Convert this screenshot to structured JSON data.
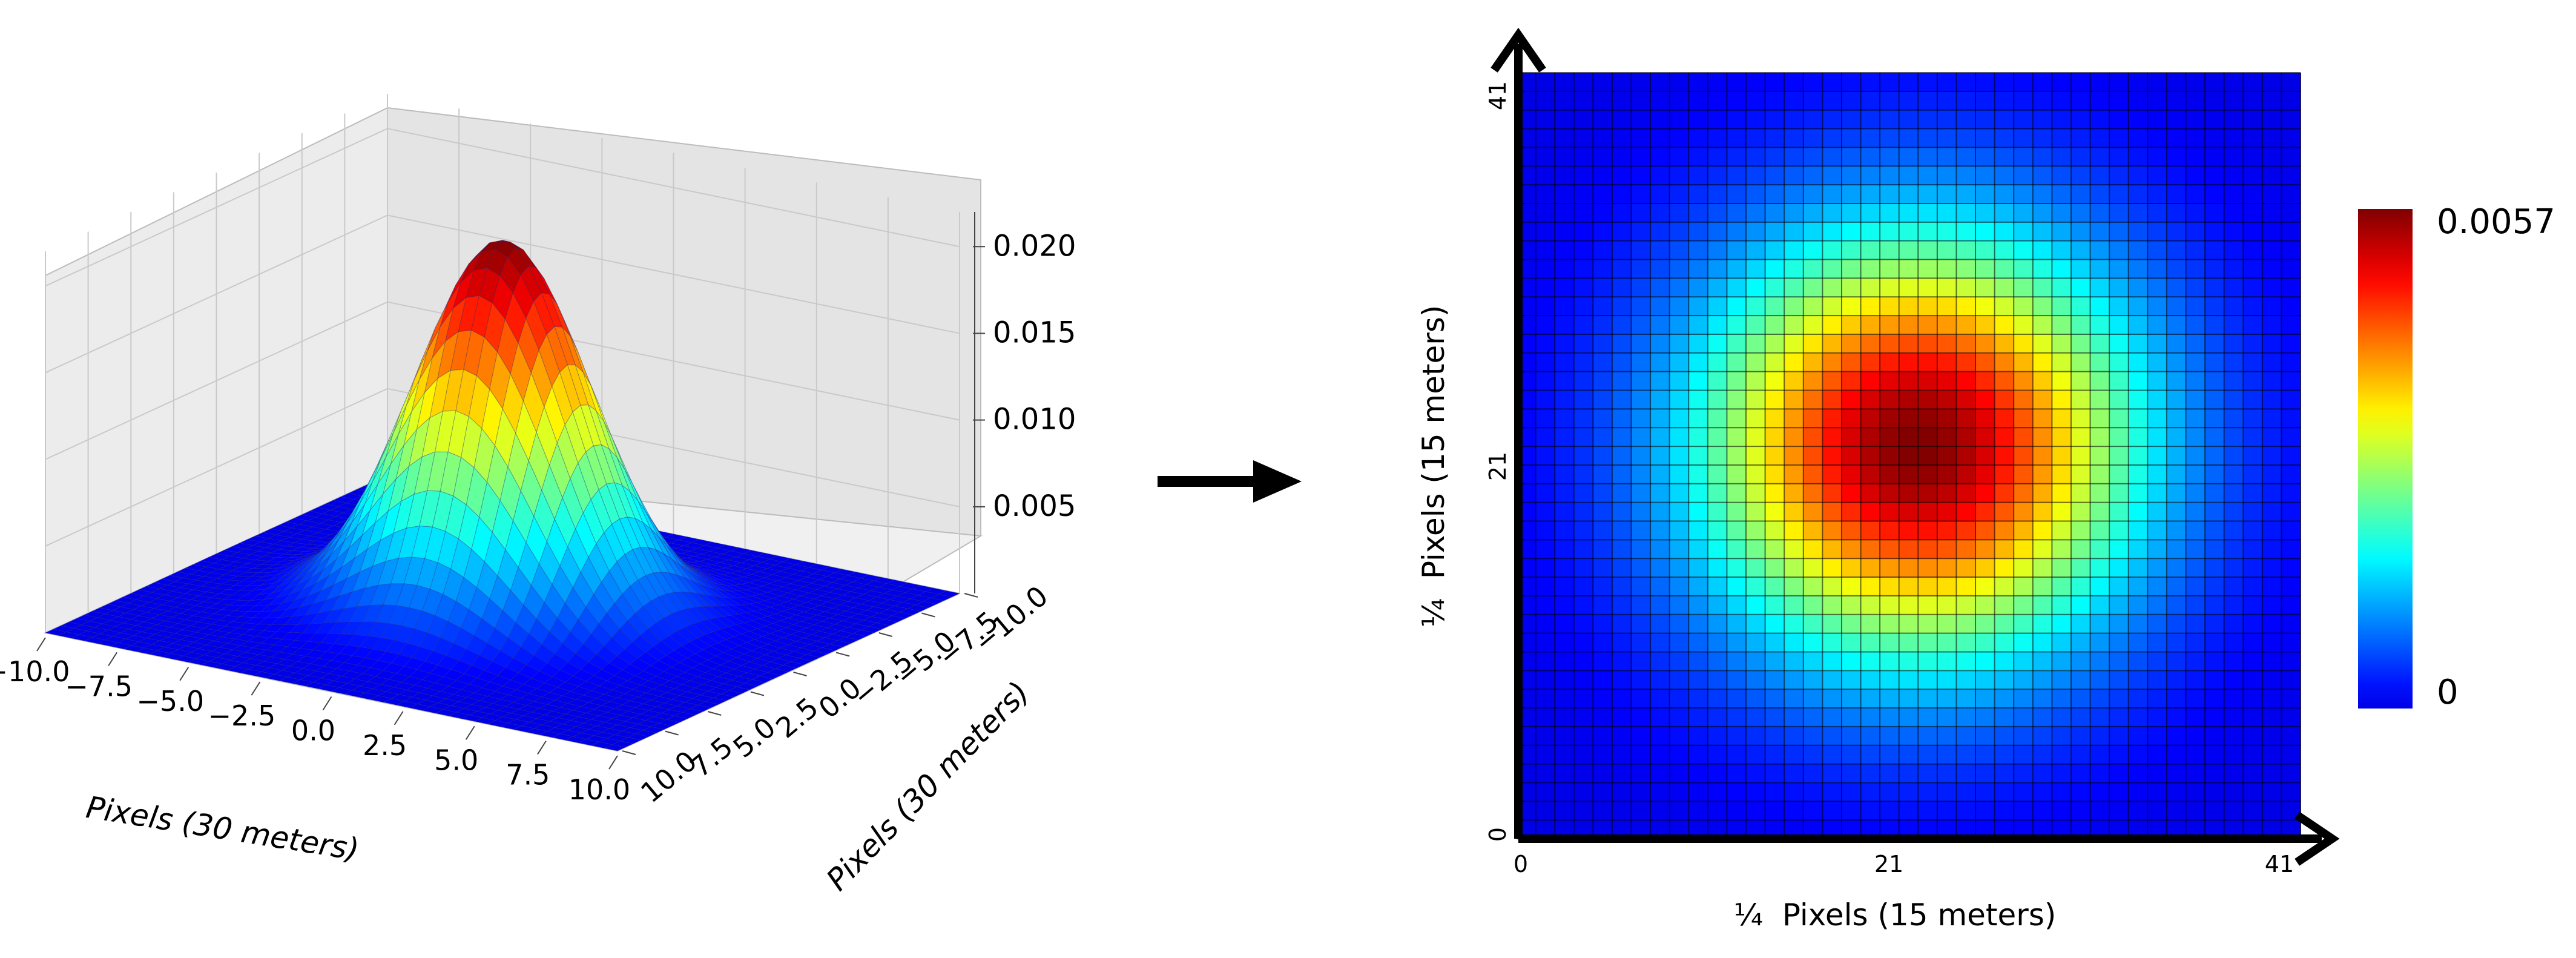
{
  "chart_data": [
    {
      "type": "surface3d",
      "title": "",
      "xlabel": "Pixels (30 meters)",
      "ylabel": "Pixels (30 meters)",
      "zlabel": "",
      "x_ticks": [
        "−10.0",
        "−7.5",
        "−5.0",
        "−2.5",
        "0.0",
        "2.5",
        "5.0",
        "7.5",
        "10.0"
      ],
      "y_ticks": [
        "−10.0",
        "−7.5",
        "−5.0",
        "−2.5",
        "0.0",
        "2.5",
        "5.0",
        "7.5",
        "10.0"
      ],
      "z_ticks": [
        "0.005",
        "0.010",
        "0.015",
        "0.020"
      ],
      "xlim": [
        -10,
        10
      ],
      "ylim": [
        -10,
        10
      ],
      "zlim": [
        0,
        0.022
      ],
      "surface": {
        "function": "gaussian-2d",
        "center": [
          0,
          0
        ],
        "sigma": 2.7,
        "peak": 0.0215
      },
      "colormap": "jet",
      "grid": true
    },
    {
      "type": "heatmap",
      "title": "",
      "xlabel": "¼  Pixels (15 meters)",
      "ylabel": "¼  Pixels (15 meters)",
      "x_ticks": [
        "0",
        "21",
        "41"
      ],
      "y_ticks": [
        "0",
        "21",
        "41"
      ],
      "xlim": [
        0,
        41
      ],
      "ylim": [
        0,
        41
      ],
      "grid_size": 41,
      "distribution": {
        "function": "gaussian-2d",
        "center": [
          21,
          21
        ],
        "sigma": 7.8
      },
      "colorbar": {
        "min_label": "0",
        "max_label": "0.0057",
        "min": 0,
        "max": 0.0057
      },
      "colormap": "jet",
      "grid": true
    }
  ]
}
